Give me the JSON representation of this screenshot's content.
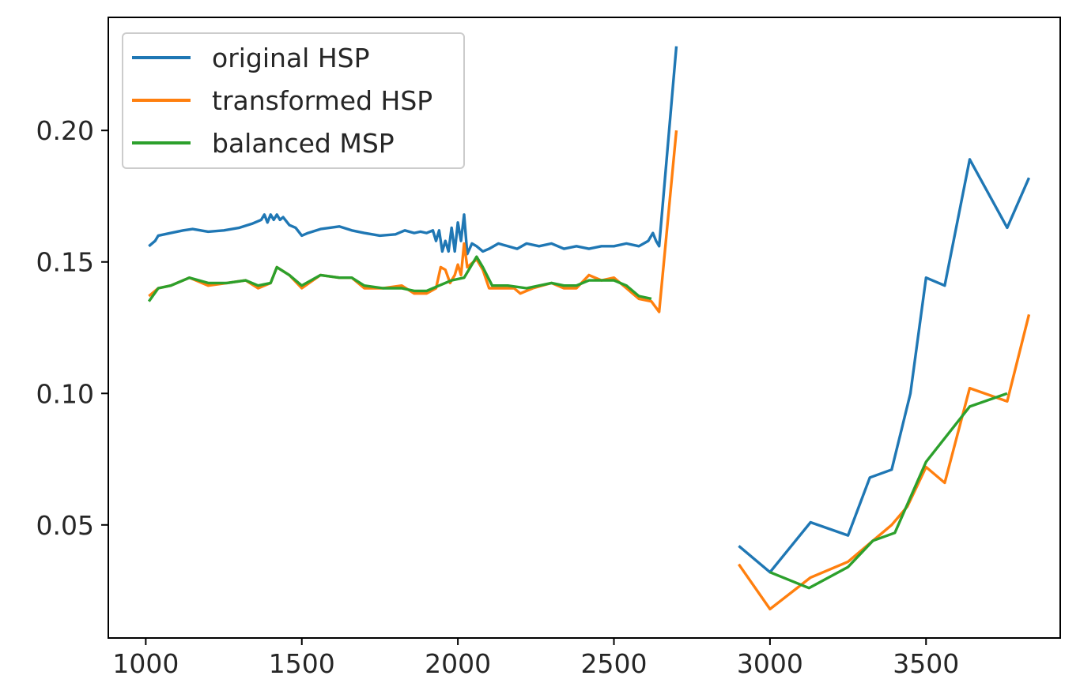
{
  "chart_data": {
    "type": "line",
    "title": "",
    "xlabel": "",
    "ylabel": "",
    "xlim": [
      880,
      3930
    ],
    "ylim": [
      0.007,
      0.243
    ],
    "grid": false,
    "legend_position": "top-left",
    "x_ticks": [
      1000,
      1500,
      2000,
      2500,
      3000,
      3500
    ],
    "x_tick_labels": [
      "1000",
      "1500",
      "2000",
      "2500",
      "3000",
      "3500"
    ],
    "y_ticks": [
      0.05,
      0.1,
      0.15,
      0.2
    ],
    "y_tick_labels": [
      "0.05",
      "0.10",
      "0.15",
      "0.20"
    ],
    "series": [
      {
        "name": "original HSP",
        "color": "#1f77b4",
        "segments": [
          [
            [
              1010,
              0.156
            ],
            [
              1030,
              0.158
            ],
            [
              1040,
              0.16
            ],
            [
              1080,
              0.161
            ],
            [
              1120,
              0.162
            ],
            [
              1150,
              0.1625
            ],
            [
              1200,
              0.1615
            ],
            [
              1250,
              0.162
            ],
            [
              1300,
              0.163
            ],
            [
              1340,
              0.1645
            ],
            [
              1370,
              0.166
            ],
            [
              1380,
              0.168
            ],
            [
              1390,
              0.165
            ],
            [
              1400,
              0.168
            ],
            [
              1410,
              0.166
            ],
            [
              1420,
              0.168
            ],
            [
              1430,
              0.166
            ],
            [
              1440,
              0.167
            ],
            [
              1460,
              0.164
            ],
            [
              1480,
              0.163
            ],
            [
              1500,
              0.16
            ],
            [
              1520,
              0.161
            ],
            [
              1560,
              0.1625
            ],
            [
              1620,
              0.1635
            ],
            [
              1660,
              0.162
            ],
            [
              1700,
              0.161
            ],
            [
              1750,
              0.16
            ],
            [
              1800,
              0.1605
            ],
            [
              1830,
              0.162
            ],
            [
              1860,
              0.161
            ],
            [
              1880,
              0.1615
            ],
            [
              1900,
              0.161
            ],
            [
              1920,
              0.162
            ],
            [
              1930,
              0.158
            ],
            [
              1940,
              0.162
            ],
            [
              1950,
              0.154
            ],
            [
              1960,
              0.158
            ],
            [
              1970,
              0.154
            ],
            [
              1980,
              0.163
            ],
            [
              1990,
              0.154
            ],
            [
              2000,
              0.165
            ],
            [
              2010,
              0.158
            ],
            [
              2020,
              0.168
            ],
            [
              2030,
              0.153
            ],
            [
              2045,
              0.157
            ],
            [
              2060,
              0.156
            ],
            [
              2080,
              0.154
            ],
            [
              2100,
              0.155
            ],
            [
              2130,
              0.157
            ],
            [
              2160,
              0.156
            ],
            [
              2190,
              0.155
            ],
            [
              2220,
              0.157
            ],
            [
              2260,
              0.156
            ],
            [
              2300,
              0.157
            ],
            [
              2340,
              0.155
            ],
            [
              2380,
              0.156
            ],
            [
              2420,
              0.155
            ],
            [
              2460,
              0.156
            ],
            [
              2500,
              0.156
            ],
            [
              2540,
              0.157
            ],
            [
              2580,
              0.156
            ],
            [
              2610,
              0.158
            ],
            [
              2625,
              0.161
            ],
            [
              2635,
              0.158
            ],
            [
              2645,
              0.156
            ],
            [
              2700,
              0.232
            ]
          ],
          [
            [
              2900,
              0.042
            ],
            [
              3000,
              0.032
            ],
            [
              3130,
              0.051
            ],
            [
              3250,
              0.046
            ],
            [
              3320,
              0.068
            ],
            [
              3390,
              0.071
            ],
            [
              3450,
              0.1
            ],
            [
              3500,
              0.144
            ],
            [
              3560,
              0.141
            ],
            [
              3640,
              0.189
            ],
            [
              3760,
              0.163
            ],
            [
              3830,
              0.182
            ]
          ]
        ]
      },
      {
        "name": "transformed HSP",
        "color": "#ff7f0e",
        "segments": [
          [
            [
              1010,
              0.137
            ],
            [
              1040,
              0.14
            ],
            [
              1080,
              0.141
            ],
            [
              1140,
              0.144
            ],
            [
              1200,
              0.141
            ],
            [
              1260,
              0.142
            ],
            [
              1320,
              0.143
            ],
            [
              1360,
              0.14
            ],
            [
              1400,
              0.142
            ],
            [
              1420,
              0.148
            ],
            [
              1460,
              0.145
            ],
            [
              1500,
              0.14
            ],
            [
              1560,
              0.145
            ],
            [
              1620,
              0.144
            ],
            [
              1660,
              0.144
            ],
            [
              1700,
              0.14
            ],
            [
              1760,
              0.14
            ],
            [
              1820,
              0.141
            ],
            [
              1860,
              0.138
            ],
            [
              1900,
              0.138
            ],
            [
              1930,
              0.14
            ],
            [
              1945,
              0.148
            ],
            [
              1960,
              0.147
            ],
            [
              1975,
              0.142
            ],
            [
              1990,
              0.145
            ],
            [
              2000,
              0.149
            ],
            [
              2010,
              0.145
            ],
            [
              2020,
              0.157
            ],
            [
              2030,
              0.148
            ],
            [
              2060,
              0.151
            ],
            [
              2080,
              0.147
            ],
            [
              2100,
              0.14
            ],
            [
              2140,
              0.14
            ],
            [
              2180,
              0.14
            ],
            [
              2200,
              0.138
            ],
            [
              2240,
              0.14
            ],
            [
              2300,
              0.142
            ],
            [
              2340,
              0.14
            ],
            [
              2380,
              0.14
            ],
            [
              2420,
              0.145
            ],
            [
              2460,
              0.143
            ],
            [
              2500,
              0.144
            ],
            [
              2540,
              0.14
            ],
            [
              2580,
              0.136
            ],
            [
              2620,
              0.135
            ],
            [
              2645,
              0.131
            ],
            [
              2700,
              0.2
            ]
          ],
          [
            [
              2900,
              0.035
            ],
            [
              3000,
              0.018
            ],
            [
              3130,
              0.03
            ],
            [
              3250,
              0.036
            ],
            [
              3320,
              0.043
            ],
            [
              3390,
              0.05
            ],
            [
              3440,
              0.057
            ],
            [
              3500,
              0.072
            ],
            [
              3560,
              0.066
            ],
            [
              3640,
              0.102
            ],
            [
              3760,
              0.097
            ],
            [
              3830,
              0.13
            ]
          ]
        ]
      },
      {
        "name": "balanced MSP",
        "color": "#2ca02c",
        "segments": [
          [
            [
              1010,
              0.135
            ],
            [
              1040,
              0.14
            ],
            [
              1080,
              0.141
            ],
            [
              1140,
              0.144
            ],
            [
              1200,
              0.142
            ],
            [
              1260,
              0.142
            ],
            [
              1320,
              0.143
            ],
            [
              1360,
              0.141
            ],
            [
              1400,
              0.142
            ],
            [
              1420,
              0.148
            ],
            [
              1460,
              0.145
            ],
            [
              1500,
              0.141
            ],
            [
              1560,
              0.145
            ],
            [
              1620,
              0.144
            ],
            [
              1660,
              0.144
            ],
            [
              1700,
              0.141
            ],
            [
              1760,
              0.14
            ],
            [
              1820,
              0.14
            ],
            [
              1860,
              0.139
            ],
            [
              1900,
              0.139
            ],
            [
              1940,
              0.141
            ],
            [
              1980,
              0.143
            ],
            [
              2020,
              0.144
            ],
            [
              2060,
              0.152
            ],
            [
              2080,
              0.148
            ],
            [
              2110,
              0.141
            ],
            [
              2160,
              0.141
            ],
            [
              2220,
              0.14
            ],
            [
              2300,
              0.142
            ],
            [
              2340,
              0.141
            ],
            [
              2380,
              0.141
            ],
            [
              2420,
              0.143
            ],
            [
              2460,
              0.143
            ],
            [
              2500,
              0.143
            ],
            [
              2540,
              0.141
            ],
            [
              2580,
              0.137
            ],
            [
              2620,
              0.136
            ]
          ],
          [
            [
              3000,
              0.032
            ],
            [
              3125,
              0.026
            ],
            [
              3250,
              0.034
            ],
            [
              3330,
              0.044
            ],
            [
              3400,
              0.047
            ],
            [
              3500,
              0.074
            ],
            [
              3640,
              0.095
            ],
            [
              3760,
              0.1
            ]
          ]
        ]
      }
    ]
  }
}
